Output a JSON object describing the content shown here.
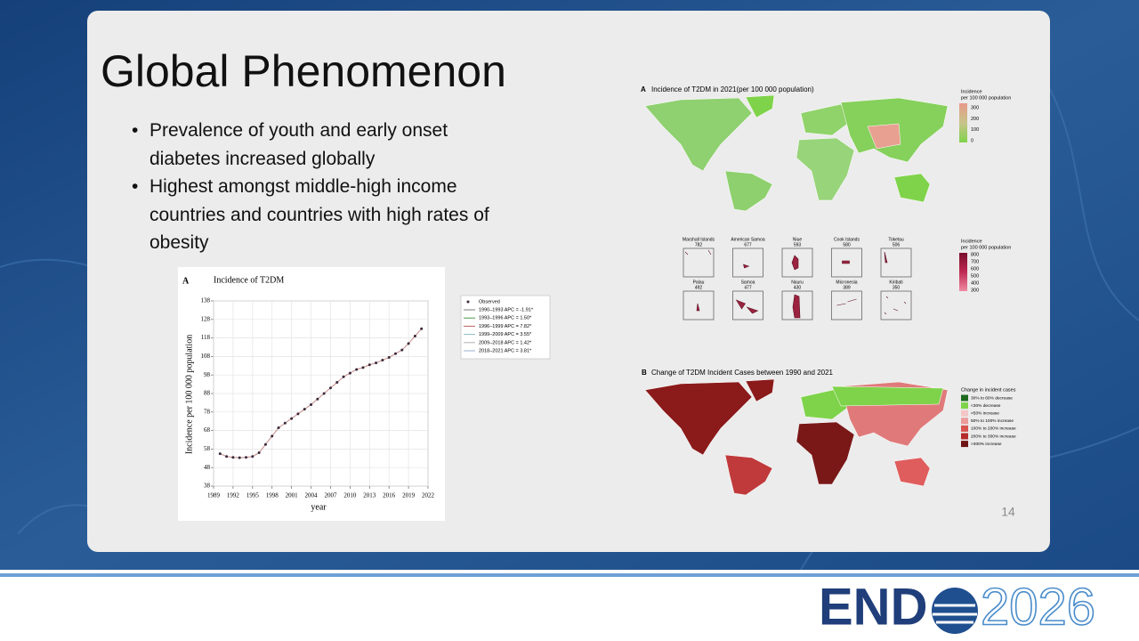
{
  "slide": {
    "title": "Global Phenomenon",
    "bullets": [
      "Prevalence of youth and early onset diabetes increased globally",
      "Highest amongst middle-high income countries and countries with high rates of obesity"
    ],
    "page_number": "14"
  },
  "chart_data": {
    "type": "line",
    "panel_label": "A",
    "title": "Incidence of T2DM",
    "x_label": "year",
    "y_label": "Incidence per 100 000 population",
    "x": [
      1990,
      1991,
      1992,
      1993,
      1994,
      1995,
      1996,
      1997,
      1998,
      1999,
      2000,
      2001,
      2002,
      2003,
      2004,
      2005,
      2006,
      2007,
      2008,
      2009,
      2010,
      2011,
      2012,
      2013,
      2014,
      2015,
      2016,
      2017,
      2018,
      2019,
      2020,
      2021
    ],
    "series": [
      {
        "name": "Observed",
        "color": "#3a2a3a",
        "values": [
          55.5,
          54,
          53.5,
          53.3,
          53.5,
          54,
          56,
          60.5,
          65,
          69.5,
          72,
          74.5,
          77,
          79.5,
          82,
          85,
          88,
          91,
          94,
          97,
          99,
          101,
          102,
          103.5,
          104.5,
          106,
          107.5,
          109.5,
          111.5,
          115,
          119,
          123
        ]
      }
    ],
    "segments": [
      {
        "label": "1990–1993 APC = -1.91*",
        "color": "#7a7a7a"
      },
      {
        "label": "1993–1996 APC = 1.50*",
        "color": "#4a9a4a"
      },
      {
        "label": "1996–1999 APC = 7.82*",
        "color": "#c06060"
      },
      {
        "label": "1999–2009 APC = 3.55*",
        "color": "#8fb8c8"
      },
      {
        "label": "2009–2018 APC = 1.42*",
        "color": "#b0b0b0"
      },
      {
        "label": "2018–2021 APC = 3.81*",
        "color": "#9ab0d0"
      }
    ],
    "xlim": [
      1989,
      2022
    ],
    "xticks": [
      1989,
      1992,
      1995,
      1998,
      2001,
      2004,
      2007,
      2010,
      2013,
      2016,
      2019,
      2022
    ],
    "ylim": [
      38,
      138
    ],
    "yticks": [
      38,
      48,
      58,
      68,
      78,
      88,
      98,
      108,
      118,
      128,
      138
    ],
    "grid": true
  },
  "maps": {
    "incidence": {
      "panel_label": "A",
      "title": "Incidence of T2DM in 2021(per 100 000 population)",
      "legend_title": [
        "Incidence",
        "per 100 000 population"
      ],
      "legend_ticks": [
        300,
        200,
        100,
        0
      ]
    },
    "islands": [
      {
        "name": "Marshall Islands",
        "value": 782
      },
      {
        "name": "American Samoa",
        "value": 677
      },
      {
        "name": "Niue",
        "value": 593
      },
      {
        "name": "Cook Islands",
        "value": 580
      },
      {
        "name": "Tokelau",
        "value": 506
      },
      {
        "name": "Palau",
        "value": 492
      },
      {
        "name": "Samoa",
        "value": 477
      },
      {
        "name": "Nauru",
        "value": 430
      },
      {
        "name": "Micronesia",
        "value": 389
      },
      {
        "name": "Kiribati",
        "value": 350
      }
    ],
    "islands_legend": {
      "title": [
        "Incidence",
        "per 100 000 population"
      ],
      "ticks": [
        800,
        700,
        600,
        500,
        400,
        300
      ]
    },
    "change": {
      "panel_label": "B",
      "title": "Change of T2DM Incident Cases between 1990 and 2021",
      "legend_title": "Change in incident cases",
      "legend": [
        {
          "label": "30% to 60% decrease",
          "color": "#1e6b1e"
        },
        {
          "label": "<30% decrease",
          "color": "#7fd34a"
        },
        {
          "label": "<50% increase",
          "color": "#f4c6c6"
        },
        {
          "label": "50% to 100% increase",
          "color": "#ec9a9a"
        },
        {
          "label": "100% to 200% increase",
          "color": "#d9534f"
        },
        {
          "label": "200% to 300% increase",
          "color": "#b52b2b"
        },
        {
          "label": ">300% increase",
          "color": "#6e1414"
        }
      ]
    }
  },
  "footer": {
    "logo_left": "END",
    "logo_right": "2026"
  }
}
